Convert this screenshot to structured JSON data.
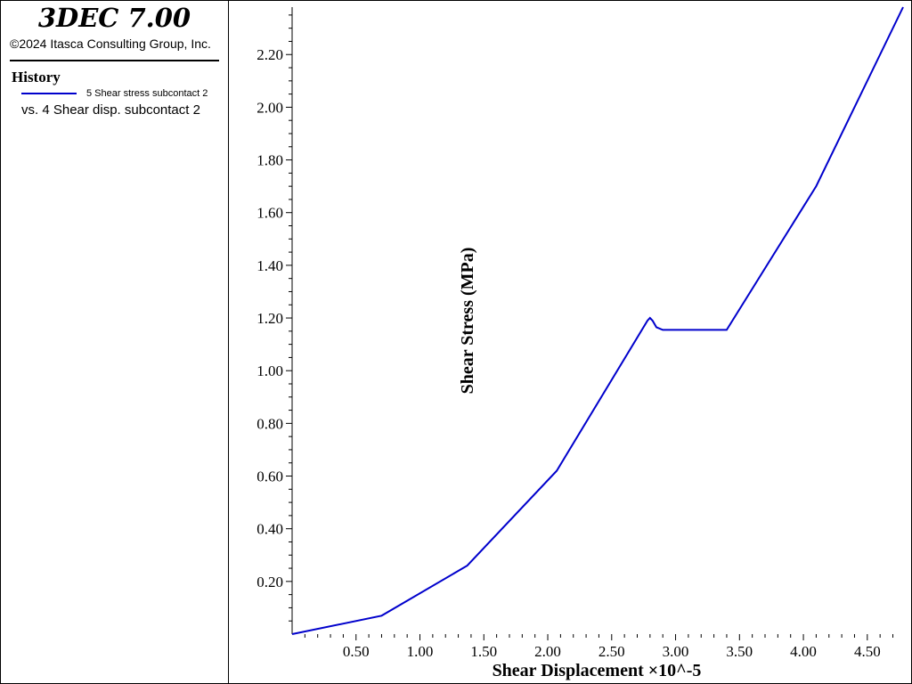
{
  "app": {
    "title": "3DEC 7.00",
    "copyright": "©2024 Itasca Consulting Group, Inc."
  },
  "history": {
    "heading": "History",
    "legend_series": "5 Shear stress subcontact 2",
    "legend_vs": "vs. 4 Shear disp. subcontact 2"
  },
  "colors": {
    "series": "#0000cc",
    "axis": "#000000",
    "background": "#ffffff"
  },
  "chart_data": {
    "type": "line",
    "xlabel": "Shear Displacement ×10^-5",
    "ylabel": "Shear Stress (MPa)",
    "xlim": [
      0,
      4.78
    ],
    "ylim": [
      0,
      2.38
    ],
    "x_ticks": [
      0.5,
      1.0,
      1.5,
      2.0,
      2.5,
      3.0,
      3.5,
      4.0,
      4.5
    ],
    "x_tick_labels": [
      "0.50",
      "1.00",
      "1.50",
      "2.00",
      "2.50",
      "3.00",
      "3.50",
      "4.00",
      "4.50"
    ],
    "y_ticks": [
      0.2,
      0.4,
      0.6,
      0.8,
      1.0,
      1.2,
      1.4,
      1.6,
      1.8,
      2.0,
      2.2
    ],
    "y_tick_labels": [
      "0.20",
      "0.40",
      "0.60",
      "0.80",
      "1.00",
      "1.20",
      "1.40",
      "1.60",
      "1.80",
      "2.00",
      "2.20"
    ],
    "grid": false,
    "series": [
      {
        "name": "5 Shear stress subcontact 2",
        "x": [
          0.0,
          0.7,
          1.37,
          2.07,
          2.78,
          2.8,
          2.82,
          2.85,
          2.9,
          3.0,
          3.2,
          3.4,
          4.1,
          4.78
        ],
        "y": [
          0.0,
          0.07,
          0.26,
          0.62,
          1.19,
          1.2,
          1.19,
          1.165,
          1.155,
          1.155,
          1.155,
          1.155,
          1.7,
          2.38
        ]
      }
    ]
  }
}
